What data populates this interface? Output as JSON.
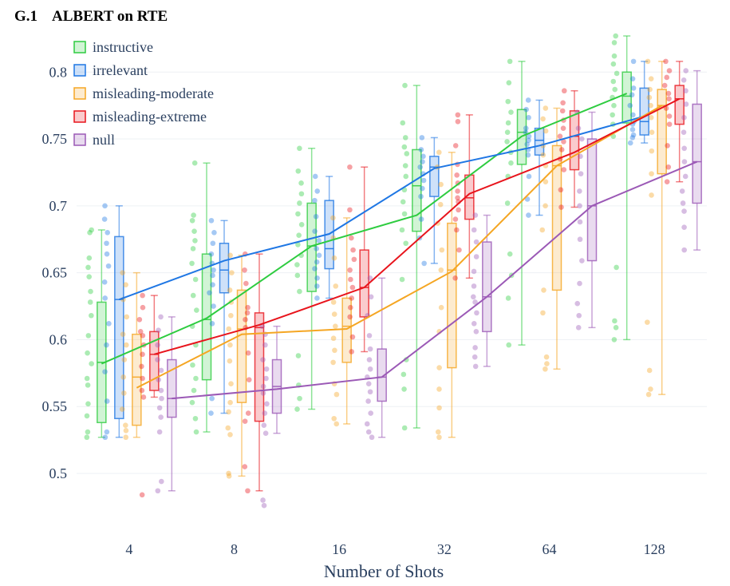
{
  "heading": {
    "number": "G.1",
    "title": "ALBERT on RTE"
  },
  "chart_data": {
    "type": "box",
    "title": "",
    "xlabel": "Number of Shots",
    "ylabel": "",
    "categories": [
      "4",
      "8",
      "16",
      "32",
      "64",
      "128"
    ],
    "ylim": [
      0.46,
      0.83
    ],
    "yticks": [
      0.5,
      0.55,
      0.6,
      0.65,
      0.7,
      0.75,
      0.8
    ],
    "ytick_labels": [
      "0.5",
      "0.55",
      "0.6",
      "0.65",
      "0.7",
      "0.75",
      "0.8"
    ],
    "grid": "horizontal",
    "legend_position": "top-left",
    "series": [
      {
        "name": "instructive",
        "color": "#2ecc40",
        "mean": [
          0.582,
          0.616,
          0.67,
          0.693,
          0.752,
          0.784
        ],
        "box": [
          {
            "min": 0.527,
            "q1": 0.538,
            "median": 0.583,
            "q3": 0.628,
            "max": 0.682
          },
          {
            "min": 0.531,
            "q1": 0.57,
            "median": 0.615,
            "q3": 0.664,
            "max": 0.732
          },
          {
            "min": 0.548,
            "q1": 0.636,
            "median": 0.67,
            "q3": 0.702,
            "max": 0.743
          },
          {
            "min": 0.534,
            "q1": 0.681,
            "median": 0.715,
            "q3": 0.742,
            "max": 0.79
          },
          {
            "min": 0.596,
            "q1": 0.731,
            "median": 0.755,
            "q3": 0.772,
            "max": 0.808
          },
          {
            "min": 0.6,
            "q1": 0.762,
            "median": 0.782,
            "q3": 0.8,
            "max": 0.827
          }
        ],
        "points": [
          [
            0.527,
            0.531,
            0.543,
            0.552,
            0.566,
            0.571,
            0.582,
            0.59,
            0.603,
            0.618,
            0.628,
            0.636,
            0.647,
            0.654,
            0.661,
            0.68,
            0.682
          ],
          [
            0.531,
            0.541,
            0.553,
            0.562,
            0.571,
            0.581,
            0.596,
            0.61,
            0.622,
            0.633,
            0.645,
            0.657,
            0.668,
            0.674,
            0.681,
            0.689,
            0.693,
            0.732
          ],
          [
            0.548,
            0.556,
            0.566,
            0.588,
            0.636,
            0.648,
            0.656,
            0.663,
            0.671,
            0.678,
            0.686,
            0.694,
            0.702,
            0.709,
            0.717,
            0.726,
            0.743
          ],
          [
            0.534,
            0.563,
            0.574,
            0.585,
            0.645,
            0.672,
            0.682,
            0.694,
            0.703,
            0.712,
            0.722,
            0.73,
            0.739,
            0.744,
            0.751,
            0.762,
            0.79
          ],
          [
            0.596,
            0.631,
            0.648,
            0.664,
            0.702,
            0.722,
            0.732,
            0.74,
            0.748,
            0.755,
            0.762,
            0.77,
            0.778,
            0.792,
            0.808
          ],
          [
            0.6,
            0.609,
            0.614,
            0.654,
            0.752,
            0.761,
            0.768,
            0.775,
            0.781,
            0.787,
            0.793,
            0.799,
            0.806,
            0.812,
            0.822,
            0.827
          ]
        ]
      },
      {
        "name": "irrelevant",
        "color": "#1f77e4",
        "mean": [
          0.63,
          0.659,
          0.679,
          0.728,
          0.745,
          0.767
        ],
        "box": [
          {
            "min": 0.527,
            "q1": 0.541,
            "median": 0.63,
            "q3": 0.677,
            "max": 0.7
          },
          {
            "min": 0.545,
            "q1": 0.635,
            "median": 0.652,
            "q3": 0.672,
            "max": 0.689
          },
          {
            "min": 0.631,
            "q1": 0.653,
            "median": 0.668,
            "q3": 0.704,
            "max": 0.722
          },
          {
            "min": 0.657,
            "q1": 0.707,
            "median": 0.729,
            "q3": 0.737,
            "max": 0.751
          },
          {
            "min": 0.693,
            "q1": 0.738,
            "median": 0.749,
            "q3": 0.758,
            "max": 0.779
          },
          {
            "min": 0.747,
            "q1": 0.753,
            "median": 0.763,
            "q3": 0.788,
            "max": 0.808
          }
        ],
        "points": [
          [
            0.527,
            0.531,
            0.554,
            0.576,
            0.596,
            0.612,
            0.631,
            0.643,
            0.655,
            0.664,
            0.672,
            0.68,
            0.69,
            0.7
          ],
          [
            0.545,
            0.556,
            0.612,
            0.625,
            0.635,
            0.641,
            0.648,
            0.652,
            0.657,
            0.664,
            0.672,
            0.68,
            0.689
          ],
          [
            0.631,
            0.64,
            0.646,
            0.653,
            0.658,
            0.663,
            0.668,
            0.674,
            0.681,
            0.692,
            0.704,
            0.711,
            0.722
          ],
          [
            0.657,
            0.676,
            0.69,
            0.707,
            0.713,
            0.719,
            0.724,
            0.729,
            0.733,
            0.737,
            0.742,
            0.751
          ],
          [
            0.693,
            0.705,
            0.722,
            0.738,
            0.742,
            0.746,
            0.749,
            0.752,
            0.755,
            0.758,
            0.766,
            0.772,
            0.779
          ],
          [
            0.747,
            0.751,
            0.753,
            0.757,
            0.761,
            0.763,
            0.768,
            0.775,
            0.783,
            0.788,
            0.795,
            0.808
          ]
        ]
      },
      {
        "name": "misleading-moderate",
        "color": "#f5a623",
        "mean": [
          0.564,
          0.604,
          0.608,
          0.651,
          0.73,
          0.775
        ],
        "box": [
          {
            "min": 0.527,
            "q1": 0.536,
            "median": 0.572,
            "q3": 0.604,
            "max": 0.65
          },
          {
            "min": 0.498,
            "q1": 0.553,
            "median": 0.608,
            "q3": 0.637,
            "max": 0.663
          },
          {
            "min": 0.537,
            "q1": 0.583,
            "median": 0.61,
            "q3": 0.631,
            "max": 0.691
          },
          {
            "min": 0.527,
            "q1": 0.579,
            "median": 0.652,
            "q3": 0.687,
            "max": 0.74
          },
          {
            "min": 0.578,
            "q1": 0.637,
            "median": 0.73,
            "q3": 0.745,
            "max": 0.773
          },
          {
            "min": 0.559,
            "q1": 0.724,
            "median": 0.775,
            "q3": 0.787,
            "max": 0.808
          }
        ],
        "points": [
          [
            0.527,
            0.532,
            0.536,
            0.548,
            0.56,
            0.572,
            0.585,
            0.596,
            0.604,
            0.617,
            0.63,
            0.641,
            0.65
          ],
          [
            0.498,
            0.5,
            0.529,
            0.534,
            0.546,
            0.553,
            0.567,
            0.584,
            0.596,
            0.608,
            0.618,
            0.628,
            0.637,
            0.65,
            0.663
          ],
          [
            0.537,
            0.541,
            0.559,
            0.567,
            0.583,
            0.592,
            0.601,
            0.61,
            0.619,
            0.628,
            0.64,
            0.661,
            0.676,
            0.691
          ],
          [
            0.527,
            0.531,
            0.549,
            0.563,
            0.579,
            0.606,
            0.624,
            0.652,
            0.667,
            0.687,
            0.701,
            0.716,
            0.729,
            0.74
          ],
          [
            0.578,
            0.582,
            0.587,
            0.62,
            0.637,
            0.682,
            0.7,
            0.718,
            0.73,
            0.738,
            0.745,
            0.756,
            0.765,
            0.773
          ],
          [
            0.559,
            0.563,
            0.577,
            0.613,
            0.708,
            0.724,
            0.741,
            0.755,
            0.766,
            0.775,
            0.781,
            0.787,
            0.795,
            0.808
          ]
        ]
      },
      {
        "name": "misleading-extreme",
        "color": "#e8141c",
        "mean": [
          0.589,
          0.611,
          0.639,
          0.709,
          0.74,
          0.78
        ],
        "box": [
          {
            "min": 0.557,
            "q1": 0.562,
            "median": 0.589,
            "q3": 0.606,
            "max": 0.633
          },
          {
            "min": 0.487,
            "q1": 0.539,
            "median": 0.609,
            "q3": 0.62,
            "max": 0.664
          },
          {
            "min": 0.591,
            "q1": 0.617,
            "median": 0.639,
            "q3": 0.667,
            "max": 0.729
          },
          {
            "min": 0.646,
            "q1": 0.69,
            "median": 0.706,
            "q3": 0.723,
            "max": 0.768
          },
          {
            "min": 0.699,
            "q1": 0.727,
            "median": 0.752,
            "q3": 0.771,
            "max": 0.786
          },
          {
            "min": 0.718,
            "q1": 0.761,
            "median": 0.78,
            "q3": 0.79,
            "max": 0.808
          }
        ],
        "points": [
          [
            0.484,
            0.557,
            0.562,
            0.571,
            0.58,
            0.589,
            0.596,
            0.603,
            0.606,
            0.615,
            0.624,
            0.633
          ],
          [
            0.487,
            0.505,
            0.539,
            0.545,
            0.57,
            0.59,
            0.609,
            0.615,
            0.62,
            0.624,
            0.642,
            0.652,
            0.664
          ],
          [
            0.591,
            0.602,
            0.617,
            0.624,
            0.631,
            0.639,
            0.645,
            0.652,
            0.66,
            0.667,
            0.676,
            0.697,
            0.729
          ],
          [
            0.646,
            0.667,
            0.682,
            0.69,
            0.697,
            0.703,
            0.706,
            0.711,
            0.717,
            0.723,
            0.731,
            0.745,
            0.763,
            0.768
          ],
          [
            0.699,
            0.712,
            0.727,
            0.735,
            0.742,
            0.748,
            0.752,
            0.758,
            0.764,
            0.771,
            0.777,
            0.786
          ],
          [
            0.718,
            0.729,
            0.745,
            0.761,
            0.767,
            0.773,
            0.78,
            0.784,
            0.79,
            0.796,
            0.801,
            0.808
          ]
        ]
      },
      {
        "name": "null",
        "color": "#9b59b6",
        "mean": [
          0.556,
          0.563,
          0.572,
          0.632,
          0.7,
          0.733
        ],
        "box": [
          {
            "min": 0.487,
            "q1": 0.542,
            "median": 0.556,
            "q3": 0.585,
            "max": 0.617
          },
          {
            "min": 0.53,
            "q1": 0.545,
            "median": 0.565,
            "q3": 0.585,
            "max": 0.61
          },
          {
            "min": 0.527,
            "q1": 0.554,
            "median": 0.572,
            "q3": 0.593,
            "max": 0.646
          },
          {
            "min": 0.58,
            "q1": 0.606,
            "median": 0.632,
            "q3": 0.673,
            "max": 0.693
          },
          {
            "min": 0.609,
            "q1": 0.659,
            "median": 0.7,
            "q3": 0.75,
            "max": 0.77
          },
          {
            "min": 0.667,
            "q1": 0.702,
            "median": 0.733,
            "q3": 0.776,
            "max": 0.801
          }
        ],
        "points": [
          [
            0.487,
            0.494,
            0.531,
            0.542,
            0.549,
            0.556,
            0.562,
            0.57,
            0.577,
            0.585,
            0.596,
            0.607,
            0.617
          ],
          [
            0.476,
            0.48,
            0.53,
            0.536,
            0.545,
            0.552,
            0.56,
            0.565,
            0.571,
            0.578,
            0.585,
            0.596,
            0.604,
            0.61
          ],
          [
            0.527,
            0.531,
            0.537,
            0.545,
            0.554,
            0.561,
            0.567,
            0.572,
            0.578,
            0.585,
            0.593,
            0.603,
            0.618,
            0.632,
            0.646
          ],
          [
            0.58,
            0.587,
            0.594,
            0.606,
            0.612,
            0.62,
            0.628,
            0.632,
            0.64,
            0.651,
            0.662,
            0.673,
            0.682,
            0.693
          ],
          [
            0.609,
            0.618,
            0.627,
            0.642,
            0.659,
            0.675,
            0.688,
            0.7,
            0.711,
            0.724,
            0.737,
            0.75,
            0.758,
            0.77
          ],
          [
            0.667,
            0.684,
            0.696,
            0.702,
            0.711,
            0.722,
            0.733,
            0.743,
            0.755,
            0.766,
            0.776,
            0.786,
            0.794,
            0.801
          ]
        ]
      }
    ]
  }
}
